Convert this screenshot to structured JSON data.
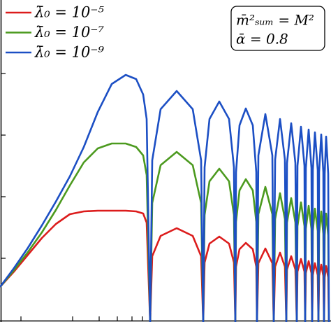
{
  "chart_data": {
    "type": "line",
    "annotation": [
      "m̄²ₛᵤₘ = M²",
      "ᾱ = 0.8"
    ],
    "xlim": [
      0,
      474
    ],
    "ylim": [
      0,
      460
    ],
    "xticks": [
      30,
      104,
      142,
      168,
      189,
      204,
      216
    ],
    "yticks": [
      91,
      179,
      267,
      355
    ],
    "x": [
      0,
      20,
      40,
      60,
      80,
      100,
      120,
      140,
      160,
      180,
      195,
      205,
      210,
      215,
      218,
      230,
      253,
      276,
      288,
      291,
      293,
      300,
      314,
      328,
      335,
      337,
      338,
      343,
      352,
      362,
      367,
      368,
      370,
      380,
      390,
      392,
      394,
      401,
      408,
      410,
      411,
      417,
      423,
      425,
      426,
      431,
      436,
      437,
      438,
      442,
      446,
      447,
      448,
      451,
      455,
      456,
      457,
      460,
      463,
      464,
      465,
      467,
      470,
      471
    ],
    "series": [
      {
        "name": "λ̄₀ = 10⁻⁵",
        "color": "#dc1c1c",
        "values": [
          50,
          72,
          96,
          120,
          140,
          154,
          158,
          159,
          159,
          159,
          158,
          155,
          142,
          0,
          94,
          123,
          134,
          123,
          94,
          0,
          85,
          112,
          122,
          112,
          85,
          0,
          79,
          104,
          113,
          104,
          79,
          0,
          84,
          105,
          84,
          0,
          79,
          99,
          79,
          0,
          75,
          94,
          75,
          0,
          72,
          90,
          72,
          0,
          70,
          87,
          70,
          0,
          67,
          84,
          67,
          0,
          66,
          82,
          66,
          0,
          64,
          80,
          64,
          0
        ]
      },
      {
        "name": "λ̄₀ = 10⁻⁷",
        "color": "#4c9a1f",
        "values": [
          50,
          74,
          100,
          128,
          160,
          195,
          228,
          248,
          255,
          255,
          250,
          238,
          210,
          0,
          170,
          224,
          243,
          224,
          170,
          0,
          153,
          201,
          219,
          201,
          153,
          0,
          143,
          188,
          204,
          188,
          143,
          0,
          154,
          193,
          154,
          0,
          147,
          184,
          147,
          0,
          142,
          177,
          142,
          0,
          137,
          171,
          137,
          0,
          133,
          166,
          133,
          0,
          130,
          162,
          130,
          0,
          126,
          158,
          126,
          0,
          124,
          155,
          124,
          0
        ]
      },
      {
        "name": "λ̄₀ = 10⁻⁹",
        "color": "#1c4fc4",
        "values": [
          50,
          77,
          106,
          138,
          172,
          208,
          250,
          300,
          340,
          353,
          347,
          325,
          290,
          0,
          231,
          304,
          330,
          304,
          231,
          0,
          221,
          290,
          315,
          290,
          221,
          0,
          214,
          281,
          305,
          281,
          214,
          0,
          238,
          297,
          238,
          0,
          232,
          290,
          232,
          0,
          227,
          284,
          227,
          0,
          223,
          279,
          223,
          0,
          220,
          275,
          220,
          0,
          217,
          271,
          217,
          0,
          214,
          268,
          214,
          0,
          212,
          265,
          212,
          0
        ]
      }
    ]
  }
}
